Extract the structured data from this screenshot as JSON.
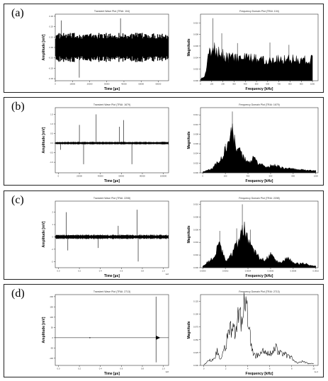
{
  "panels": [
    {
      "label": "(a)"
    },
    {
      "label": "(b)"
    },
    {
      "label": "(c)"
    },
    {
      "label": "(d)"
    }
  ],
  "chart_data": [
    {
      "type": "line",
      "kind": "time",
      "signal": "noise",
      "title": "Transient Wave Plot (TRAI: 104)",
      "xlabel": "Time [µs]",
      "ylabel": "Amplitude [mV]",
      "xlim": [
        0,
        66000
      ],
      "ylim": [
        -0.32,
        0.32
      ],
      "xticks": [
        0,
        10000,
        20000,
        30000,
        40000,
        50000,
        60000
      ],
      "xtick_labels": [
        "0",
        "10000",
        "20000",
        "30000",
        "40000",
        "50000",
        "60000"
      ],
      "yticks": [
        -0.3,
        -0.2,
        -0.1,
        0.0,
        0.1,
        0.2,
        0.3
      ],
      "ytick_labels": [
        "-0.30",
        "-0.20",
        "-0.10",
        "0.00",
        "0.10",
        "0.20",
        "0.30"
      ],
      "x_exponent": "",
      "noise_level": 0.14,
      "spikes": [
        {
          "x": 14000,
          "y": -0.29
        },
        {
          "x": 3500,
          "y": 0.26
        },
        {
          "x": 38000,
          "y": 0.28
        }
      ]
    },
    {
      "type": "area",
      "kind": "freq",
      "signal": "spectrum",
      "title": "Frequency Domain Plot (TRAI: 104)",
      "xlabel": "Frequency [kHz]",
      "ylabel": "Magnitude",
      "xlim": [
        0,
        1050
      ],
      "ylim": [
        0,
        0.0115
      ],
      "xticks": [
        0,
        100,
        200,
        300,
        400,
        500,
        600,
        700,
        800,
        900,
        1000
      ],
      "xtick_labels": [
        "0",
        "100",
        "200",
        "300",
        "400",
        "500",
        "600",
        "700",
        "800",
        "900",
        "1000"
      ],
      "yticks": [
        0.0,
        0.002,
        0.004,
        0.006,
        0.008,
        0.01
      ],
      "ytick_labels": [
        "0.000",
        "0.002",
        "0.004",
        "0.006",
        "0.008",
        "0.010"
      ],
      "x_exponent": "",
      "envelope": [
        [
          0,
          0.0003
        ],
        [
          40,
          0.0008
        ],
        [
          70,
          0.0042
        ],
        [
          100,
          0.0055
        ],
        [
          140,
          0.0052
        ],
        [
          180,
          0.0047
        ],
        [
          250,
          0.0041
        ],
        [
          350,
          0.0039
        ],
        [
          450,
          0.0038
        ],
        [
          550,
          0.0037
        ],
        [
          650,
          0.0037
        ],
        [
          750,
          0.0038
        ],
        [
          850,
          0.0037
        ],
        [
          950,
          0.0036
        ],
        [
          1000,
          0.0036
        ]
      ],
      "peaks": [
        [
          110,
          0.0108
        ],
        [
          190,
          0.0082
        ],
        [
          330,
          0.0065
        ],
        [
          620,
          0.0066
        ],
        [
          790,
          0.0062
        ]
      ]
    },
    {
      "type": "line",
      "kind": "time",
      "signal": "bursts",
      "title": "Transient Wave Plot (TRAI: 1679)",
      "xlabel": "Time [µs]",
      "ylabel": "Amplitude [mV]",
      "xlim": [
        -3000,
        105000
      ],
      "ylim": [
        -1.55,
        1.85
      ],
      "xticks": [
        0,
        20000,
        40000,
        60000,
        80000,
        100000
      ],
      "xtick_labels": [
        "0",
        "20000",
        "40000",
        "60000",
        "80000",
        "100000"
      ],
      "yticks": [
        -1.0,
        -0.5,
        0.0,
        0.5,
        1.0,
        1.5
      ],
      "ytick_labels": [
        "-1.0",
        "-0.5",
        "0.0",
        "0.5",
        "1.0",
        "1.5"
      ],
      "x_exponent": "",
      "noise_level": 0.07,
      "spikes": [
        {
          "x": 20000,
          "y": 0.95
        },
        {
          "x": 24000,
          "y": -1.1
        },
        {
          "x": 36000,
          "y": 1.5
        },
        {
          "x": 58000,
          "y": 0.85
        },
        {
          "x": 62000,
          "y": 1.2
        },
        {
          "x": 70000,
          "y": -1.1
        },
        {
          "x": 2000,
          "y": -0.35
        }
      ]
    },
    {
      "type": "area",
      "kind": "freq",
      "signal": "spectrum",
      "title": "Frequency Domain Plot (TRAI: 1679)",
      "xlabel": "Frequency [kHz]",
      "ylabel": "Magnitude",
      "xlim": [
        -20,
        1020
      ],
      "ylim": [
        0,
        0.0135
      ],
      "xticks": [
        0,
        200,
        400,
        600,
        800,
        1000
      ],
      "xtick_labels": [
        "0",
        "200",
        "400",
        "600",
        "800",
        "1000"
      ],
      "yticks": [
        0.0,
        0.002,
        0.004,
        0.006,
        0.008,
        0.01,
        0.012
      ],
      "ytick_labels": [
        "0.000",
        "0.002",
        "0.004",
        "0.006",
        "0.008",
        "0.010",
        "0.012"
      ],
      "x_exponent": "",
      "envelope": [
        [
          0,
          0.0002
        ],
        [
          80,
          0.0008
        ],
        [
          150,
          0.0025
        ],
        [
          220,
          0.0055
        ],
        [
          260,
          0.0085
        ],
        [
          290,
          0.006
        ],
        [
          330,
          0.004
        ],
        [
          400,
          0.002
        ],
        [
          450,
          0.003
        ],
        [
          500,
          0.0017
        ],
        [
          580,
          0.0013
        ],
        [
          640,
          0.0016
        ],
        [
          700,
          0.001
        ],
        [
          800,
          0.0008
        ],
        [
          900,
          0.0006
        ],
        [
          1000,
          0.0004
        ]
      ],
      "peaks": [
        [
          262,
          0.0127
        ],
        [
          200,
          0.006
        ],
        [
          330,
          0.0052
        ],
        [
          450,
          0.0033
        ]
      ]
    },
    {
      "type": "line",
      "kind": "time",
      "signal": "bursts",
      "title": "Transient Wave Plot (TRAI: 2208)",
      "xlabel": "Time [µs]",
      "ylabel": "Amplitude [mV]",
      "xlim": [
        -30000,
        1050000
      ],
      "ylim": [
        -2.5,
        2.9
      ],
      "xticks": [
        0,
        200000,
        400000,
        600000,
        800000,
        1000000
      ],
      "xtick_labels": [
        "0.0",
        "0.2",
        "0.4",
        "0.6",
        "0.8",
        "1.0"
      ],
      "yticks": [
        -2,
        -1,
        0,
        1,
        2
      ],
      "ytick_labels": [
        "-2",
        "-1",
        "0",
        "1",
        "2"
      ],
      "x_exponent": "1e6",
      "noise_level": 0.18,
      "spikes": [
        {
          "x": 75000,
          "y": 2.0
        },
        {
          "x": 90000,
          "y": -1.1
        },
        {
          "x": 380000,
          "y": -0.9
        },
        {
          "x": 570000,
          "y": 0.9
        },
        {
          "x": 750000,
          "y": 2.2
        },
        {
          "x": 760000,
          "y": -2.0
        }
      ]
    },
    {
      "type": "area",
      "kind": "freq",
      "signal": "spectrum",
      "title": "Frequency Domain Plot (TRAI: 2208)",
      "xlabel": "Frequency [kHz]",
      "ylabel": "Magnitude",
      "xlim": [
        -2e-05,
        0.00102
      ],
      "ylim": [
        0,
        0.0105
      ],
      "xticks": [
        0,
        0.0002,
        0.0004,
        0.0006,
        0.0008,
        0.001
      ],
      "xtick_labels": [
        "0.0000",
        "0.0002",
        "0.0004",
        "0.0006",
        "0.0008",
        "0.0010"
      ],
      "yticks": [
        0.0,
        0.002,
        0.004,
        0.006,
        0.008,
        0.01
      ],
      "ytick_labels": [
        "0.000",
        "0.002",
        "0.004",
        "0.006",
        "0.008",
        "0.010"
      ],
      "x_exponent": "",
      "envelope": [
        [
          0,
          0.0003
        ],
        [
          5e-05,
          0.001
        ],
        [
          0.0001,
          0.0015
        ],
        [
          0.00015,
          0.004
        ],
        [
          0.0002,
          0.001
        ],
        [
          0.00025,
          0.002
        ],
        [
          0.0003,
          0.0035
        ],
        [
          0.00035,
          0.0068
        ],
        [
          0.0004,
          0.0045
        ],
        [
          0.00045,
          0.003
        ],
        [
          0.0005,
          0.0015
        ],
        [
          0.00055,
          0.0012
        ],
        [
          0.0006,
          0.002
        ],
        [
          0.00065,
          0.001
        ],
        [
          0.0007,
          0.0008
        ],
        [
          0.00075,
          0.0016
        ],
        [
          0.0008,
          0.0008
        ],
        [
          0.00085,
          0.0006
        ],
        [
          0.0009,
          0.0007
        ],
        [
          0.00095,
          0.0004
        ],
        [
          0.001,
          0.0003
        ]
      ],
      "peaks": [
        [
          0.00035,
          0.01
        ],
        [
          0.00015,
          0.0058
        ],
        [
          0.0003,
          0.0062
        ],
        [
          0.00042,
          0.006
        ]
      ]
    },
    {
      "type": "line",
      "kind": "time",
      "signal": "impulse",
      "title": "Transient Wave Plot (TRAI: 2713)",
      "xlabel": "Time [µs]",
      "ylabel": "Amplitude [mV]",
      "xlim": [
        -30000,
        1050000
      ],
      "ylim": [
        -135,
        210
      ],
      "xticks": [
        0,
        200000,
        400000,
        600000,
        800000,
        1000000
      ],
      "xtick_labels": [
        "0.0",
        "0.2",
        "0.4",
        "0.6",
        "0.8",
        "1.0"
      ],
      "yticks": [
        -100,
        -50,
        0,
        50,
        100,
        150,
        200
      ],
      "ytick_labels": [
        "-100",
        "-50",
        "0",
        "50",
        "100",
        "150",
        "200"
      ],
      "x_exponent": "1e6",
      "impulse_x": 930000,
      "impulse_max": 200,
      "impulse_min": -120,
      "small_mark_x": 300000
    },
    {
      "type": "line",
      "kind": "freq",
      "signal": "lineSpectrum",
      "title": "Frequency Domain Plot (TRAI: 2713)",
      "xlabel": "Frequency [kHz]",
      "ylabel": "Magnitude",
      "xlim": [
        -3e-05,
        0.00104
      ],
      "ylim": [
        0,
        0.138
      ],
      "xticks": [
        0,
        0.0002,
        0.0004,
        0.0006,
        0.0008,
        0.001
      ],
      "xtick_labels": [
        "0",
        "2",
        "4",
        "6",
        "8",
        "10"
      ],
      "yticks": [
        0.0,
        0.025,
        0.05,
        0.075,
        0.1,
        0.125
      ],
      "ytick_labels": [
        "0.000",
        "0.025",
        "0.050",
        "0.075",
        "0.100",
        "0.125"
      ],
      "x_exponent": "1e-4",
      "profile": [
        [
          0,
          0.001
        ],
        [
          5e-05,
          0.01
        ],
        [
          0.0001,
          0.012
        ],
        [
          0.00012,
          0.03
        ],
        [
          0.00015,
          0.01
        ],
        [
          0.0002,
          0.04
        ],
        [
          0.00022,
          0.06
        ],
        [
          0.00025,
          0.075
        ],
        [
          0.00028,
          0.065
        ],
        [
          0.0003,
          0.08
        ],
        [
          0.00032,
          0.11
        ],
        [
          0.00035,
          0.075
        ],
        [
          0.00037,
          0.13
        ],
        [
          0.00039,
          0.11
        ],
        [
          0.00042,
          0.06
        ],
        [
          0.00045,
          0.02
        ],
        [
          0.0005,
          0.02
        ],
        [
          0.00055,
          0.03
        ],
        [
          0.0006,
          0.022
        ],
        [
          0.00065,
          0.035
        ],
        [
          0.0007,
          0.025
        ],
        [
          0.00075,
          0.02
        ],
        [
          0.0008,
          0.015
        ],
        [
          0.00085,
          0.005
        ],
        [
          0.0009,
          0.008
        ],
        [
          0.00095,
          0.004
        ],
        [
          0.001,
          0.003
        ]
      ]
    }
  ]
}
